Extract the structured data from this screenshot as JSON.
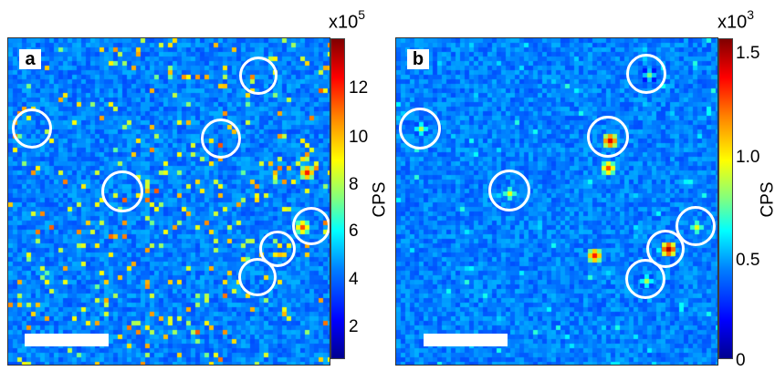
{
  "panels": [
    {
      "letter": "a",
      "colorbar": {
        "multiplier": "x10",
        "exponent": "5",
        "ticks": [
          "12",
          "10",
          "8",
          "6",
          "4",
          "2"
        ],
        "label": "CPS"
      }
    },
    {
      "letter": "b",
      "colorbar": {
        "multiplier": "x10",
        "exponent": "3",
        "ticks": [
          "1.5",
          "1.0",
          "0.5",
          "0"
        ],
        "label": "CPS"
      }
    }
  ],
  "colors": {
    "background_blue": "#1846d8",
    "circle": "#ffffff",
    "scalebar": "#ffffff"
  }
}
